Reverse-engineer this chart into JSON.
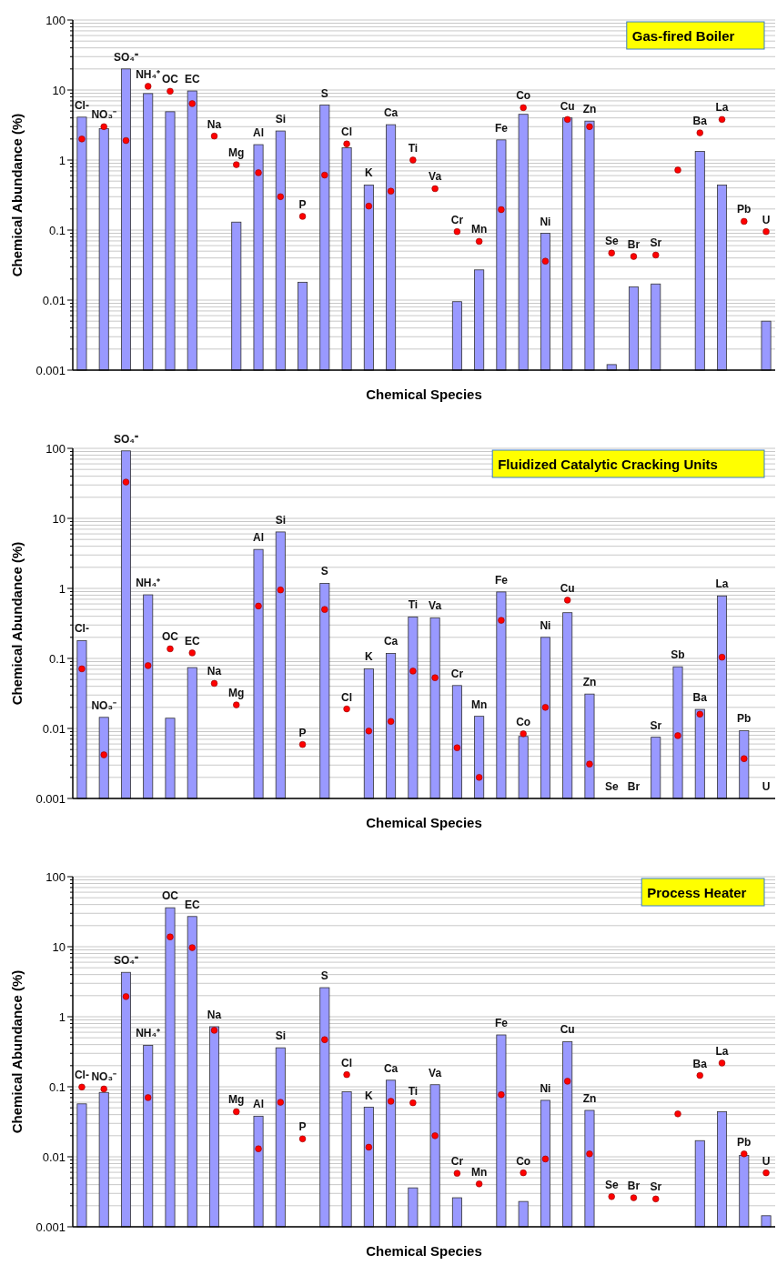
{
  "chart_data": [
    {
      "type": "bar",
      "title": "Gas-fired Boiler",
      "xlabel": "Chemical Species",
      "ylabel": "Chemical Abundance (%)",
      "log": "y",
      "grid": "y",
      "categories": [
        "Cl-",
        "NO₃⁻",
        "SO₄⁼",
        "NH₄⁺",
        "OC",
        "EC",
        "Na",
        "Mg",
        "Al",
        "Si",
        "P",
        "S",
        "Cl",
        "K",
        "Ca",
        "Ti",
        "Va",
        "Cr",
        "Mn",
        "Fe",
        "Co",
        "Ni",
        "Cu",
        "Zn",
        "Se",
        "Br",
        "Sr",
        null,
        "Ba",
        "La",
        "Pb",
        "U"
      ],
      "ylim": [
        0.001,
        100
      ],
      "yticks": [
        {
          "value": 0.001,
          "label": "0.001"
        },
        {
          "value": 0.002,
          "label": null
        },
        {
          "value": 0.003,
          "label": null
        },
        {
          "value": 0.004,
          "label": null
        },
        {
          "value": 0.005,
          "label": null
        },
        {
          "value": 0.006,
          "label": null
        },
        {
          "value": 0.007,
          "label": null
        },
        {
          "value": 0.008,
          "label": null
        },
        {
          "value": 0.009,
          "label": null
        },
        {
          "value": 0.01,
          "label": "0.01"
        },
        {
          "value": 0.02,
          "label": null
        },
        {
          "value": 0.03,
          "label": null
        },
        {
          "value": 0.04,
          "label": null
        },
        {
          "value": 0.05,
          "label": null
        },
        {
          "value": 0.06,
          "label": null
        },
        {
          "value": 0.07,
          "label": null
        },
        {
          "value": 0.08,
          "label": null
        },
        {
          "value": 0.09,
          "label": null
        },
        {
          "value": 0.1,
          "label": "0.1"
        },
        {
          "value": 0.2,
          "label": null
        },
        {
          "value": 0.3,
          "label": null
        },
        {
          "value": 0.4,
          "label": null
        },
        {
          "value": 0.5,
          "label": null
        },
        {
          "value": 0.6,
          "label": null
        },
        {
          "value": 0.7,
          "label": null
        },
        {
          "value": 0.8,
          "label": null
        },
        {
          "value": 0.9,
          "label": null
        },
        1,
        {
          "value": 2,
          "label": null
        },
        {
          "value": 3,
          "label": null
        },
        {
          "value": 4,
          "label": null
        },
        {
          "value": 5,
          "label": null
        },
        {
          "value": 6,
          "label": null
        },
        {
          "value": 7,
          "label": null
        },
        {
          "value": 8,
          "label": null
        },
        {
          "value": 9,
          "label": null
        },
        10,
        {
          "value": 20,
          "label": null
        },
        {
          "value": 30,
          "label": null
        },
        {
          "value": 40,
          "label": null
        },
        {
          "value": 50,
          "label": null
        },
        {
          "value": 60,
          "label": null
        },
        {
          "value": 70,
          "label": null
        },
        {
          "value": 80,
          "label": null
        },
        {
          "value": 90,
          "label": null
        },
        100
      ],
      "series": [
        {
          "color": "#9999ff",
          "values": [
            4.1,
            2.8,
            20,
            8.9,
            4.9,
            9.7,
            null,
            0.13,
            1.66,
            2.6,
            0.018,
            6.1,
            1.5,
            0.44,
            3.2,
            null,
            null,
            0.0095,
            0.027,
            1.94,
            4.5,
            0.09,
            4.0,
            3.6,
            0.0012,
            0.0155,
            0.017,
            null,
            1.33,
            0.44,
            null,
            0.005
          ]
        },
        {
          "type": "scatter",
          "color": "#ff0000",
          "marker": "circle",
          "values": [
            2.0,
            3.0,
            1.9,
            11.3,
            9.6,
            6.4,
            2.2,
            0.86,
            0.66,
            0.3,
            0.157,
            0.61,
            1.7,
            0.22,
            0.36,
            1.0,
            0.39,
            0.095,
            0.069,
            0.196,
            5.6,
            0.036,
            3.8,
            3.0,
            0.047,
            0.042,
            0.044,
            0.72,
            2.45,
            3.8,
            0.133,
            0.095
          ]
        }
      ]
    },
    {
      "type": "bar",
      "title": "Fluidized Catalytic Cracking Units",
      "xlabel": "Chemical Species",
      "ylabel": "Chemical Abundance (%)",
      "log": "y",
      "grid": "y",
      "categories": [
        "Cl-",
        "NO₃⁻",
        "SO₄⁼",
        "NH₄⁺",
        "OC",
        "EC",
        "Na",
        "Mg",
        "Al",
        "Si",
        "P",
        "S",
        "Cl",
        "K",
        "Ca",
        "Ti",
        "Va",
        "Cr",
        "Mn",
        "Fe",
        "Co",
        "Ni",
        "Cu",
        "Zn",
        "Se",
        "Br",
        "Sr",
        "Sb",
        "Ba",
        "La",
        "Pb",
        "U"
      ],
      "ylim": [
        0.001,
        100
      ],
      "yticks": [
        {
          "value": 0.001,
          "label": "0.001"
        },
        {
          "value": 0.002,
          "label": null
        },
        {
          "value": 0.003,
          "label": null
        },
        {
          "value": 0.004,
          "label": null
        },
        {
          "value": 0.005,
          "label": null
        },
        {
          "value": 0.006,
          "label": null
        },
        {
          "value": 0.007,
          "label": null
        },
        {
          "value": 0.008,
          "label": null
        },
        {
          "value": 0.009,
          "label": null
        },
        {
          "value": 0.01,
          "label": "0.01"
        },
        {
          "value": 0.02,
          "label": null
        },
        {
          "value": 0.03,
          "label": null
        },
        {
          "value": 0.04,
          "label": null
        },
        {
          "value": 0.05,
          "label": null
        },
        {
          "value": 0.06,
          "label": null
        },
        {
          "value": 0.07,
          "label": null
        },
        {
          "value": 0.08,
          "label": null
        },
        {
          "value": 0.09,
          "label": null
        },
        {
          "value": 0.1,
          "label": "0.1"
        },
        {
          "value": 0.2,
          "label": null
        },
        {
          "value": 0.3,
          "label": null
        },
        {
          "value": 0.4,
          "label": null
        },
        {
          "value": 0.5,
          "label": null
        },
        {
          "value": 0.6,
          "label": null
        },
        {
          "value": 0.7,
          "label": null
        },
        {
          "value": 0.8,
          "label": null
        },
        {
          "value": 0.9,
          "label": null
        },
        1,
        {
          "value": 2,
          "label": null
        },
        {
          "value": 3,
          "label": null
        },
        {
          "value": 4,
          "label": null
        },
        {
          "value": 5,
          "label": null
        },
        {
          "value": 6,
          "label": null
        },
        {
          "value": 7,
          "label": null
        },
        {
          "value": 8,
          "label": null
        },
        {
          "value": 9,
          "label": null
        },
        10,
        {
          "value": 20,
          "label": null
        },
        {
          "value": 30,
          "label": null
        },
        {
          "value": 40,
          "label": null
        },
        {
          "value": 50,
          "label": null
        },
        {
          "value": 60,
          "label": null
        },
        {
          "value": 70,
          "label": null
        },
        {
          "value": 80,
          "label": null
        },
        {
          "value": 90,
          "label": null
        },
        100
      ],
      "series": [
        {
          "color": "#9999ff",
          "values": [
            0.18,
            0.0144,
            92,
            0.81,
            0.014,
            0.074,
            null,
            null,
            3.6,
            6.4,
            null,
            1.18,
            null,
            0.071,
            0.118,
            0.39,
            0.38,
            0.041,
            0.0149,
            0.89,
            0.0077,
            0.2,
            0.45,
            0.031,
            0.001,
            0.001,
            0.0075,
            0.076,
            0.0187,
            0.78,
            0.0093,
            0.001
          ]
        },
        {
          "type": "scatter",
          "color": "#ff0000",
          "marker": "circle",
          "values": [
            0.071,
            0.0042,
            33,
            0.079,
            0.137,
            0.12,
            0.044,
            0.0217,
            0.56,
            0.95,
            0.0059,
            0.5,
            0.019,
            0.0092,
            0.0126,
            0.066,
            0.053,
            0.0053,
            0.002,
            0.35,
            0.0084,
            0.02,
            0.68,
            0.0031,
            null,
            null,
            null,
            0.0079,
            0.016,
            0.104,
            0.0037,
            null
          ]
        }
      ]
    },
    {
      "type": "bar",
      "title": "Process Heater",
      "xlabel": "Chemical Species",
      "ylabel": "Chemical Abundance (%)",
      "log": "y",
      "grid": "y",
      "categories": [
        "Cl-",
        "NO₃⁻",
        "SO₄⁼",
        "NH₄⁺",
        "OC",
        "EC",
        "Na",
        "Mg",
        "Al",
        "Si",
        "P",
        "S",
        "Cl",
        "K",
        "Ca",
        "Ti",
        "Va",
        "Cr",
        "Mn",
        "Fe",
        "Co",
        "Ni",
        "Cu",
        "Zn",
        "Se",
        "Br",
        "Sr",
        null,
        "Ba",
        "La",
        "Pb",
        "U"
      ],
      "ylim": [
        0.001,
        100
      ],
      "yticks": [
        {
          "value": 0.001,
          "label": "0.001"
        },
        {
          "value": 0.002,
          "label": null
        },
        {
          "value": 0.003,
          "label": null
        },
        {
          "value": 0.004,
          "label": null
        },
        {
          "value": 0.005,
          "label": null
        },
        {
          "value": 0.006,
          "label": null
        },
        {
          "value": 0.007,
          "label": null
        },
        {
          "value": 0.008,
          "label": null
        },
        {
          "value": 0.009,
          "label": null
        },
        {
          "value": 0.01,
          "label": "0.01"
        },
        {
          "value": 0.02,
          "label": null
        },
        {
          "value": 0.03,
          "label": null
        },
        {
          "value": 0.04,
          "label": null
        },
        {
          "value": 0.05,
          "label": null
        },
        {
          "value": 0.06,
          "label": null
        },
        {
          "value": 0.07,
          "label": null
        },
        {
          "value": 0.08,
          "label": null
        },
        {
          "value": 0.09,
          "label": null
        },
        {
          "value": 0.1,
          "label": "0.1"
        },
        {
          "value": 0.2,
          "label": null
        },
        {
          "value": 0.3,
          "label": null
        },
        {
          "value": 0.4,
          "label": null
        },
        {
          "value": 0.5,
          "label": null
        },
        {
          "value": 0.6,
          "label": null
        },
        {
          "value": 0.7,
          "label": null
        },
        {
          "value": 0.8,
          "label": null
        },
        {
          "value": 0.9,
          "label": null
        },
        1,
        {
          "value": 2,
          "label": null
        },
        {
          "value": 3,
          "label": null
        },
        {
          "value": 4,
          "label": null
        },
        {
          "value": 5,
          "label": null
        },
        {
          "value": 6,
          "label": null
        },
        {
          "value": 7,
          "label": null
        },
        {
          "value": 8,
          "label": null
        },
        {
          "value": 9,
          "label": null
        },
        10,
        {
          "value": 20,
          "label": null
        },
        {
          "value": 30,
          "label": null
        },
        {
          "value": 40,
          "label": null
        },
        {
          "value": 50,
          "label": null
        },
        {
          "value": 60,
          "label": null
        },
        {
          "value": 70,
          "label": null
        },
        {
          "value": 80,
          "label": null
        },
        {
          "value": 90,
          "label": null
        },
        100
      ],
      "series": [
        {
          "color": "#9999ff",
          "values": [
            0.057,
            0.083,
            4.3,
            0.39,
            36,
            27,
            0.72,
            null,
            0.038,
            0.36,
            null,
            2.6,
            0.085,
            0.051,
            0.124,
            0.0036,
            0.107,
            0.0026,
            null,
            0.55,
            0.0023,
            0.064,
            0.44,
            0.046,
            null,
            null,
            null,
            null,
            0.017,
            0.044,
            0.0105,
            0.00144
          ]
        },
        {
          "type": "scatter",
          "color": "#ff0000",
          "marker": "circle",
          "values": [
            0.099,
            0.093,
            1.94,
            0.07,
            13.8,
            9.7,
            0.64,
            0.044,
            0.013,
            0.06,
            0.018,
            0.47,
            0.149,
            0.0137,
            0.062,
            0.059,
            0.02,
            0.0058,
            0.0041,
            0.077,
            0.0059,
            0.0093,
            0.12,
            0.011,
            0.0027,
            0.0026,
            0.0025,
            0.041,
            0.145,
            0.218,
            0.011,
            0.0059
          ]
        }
      ]
    }
  ]
}
